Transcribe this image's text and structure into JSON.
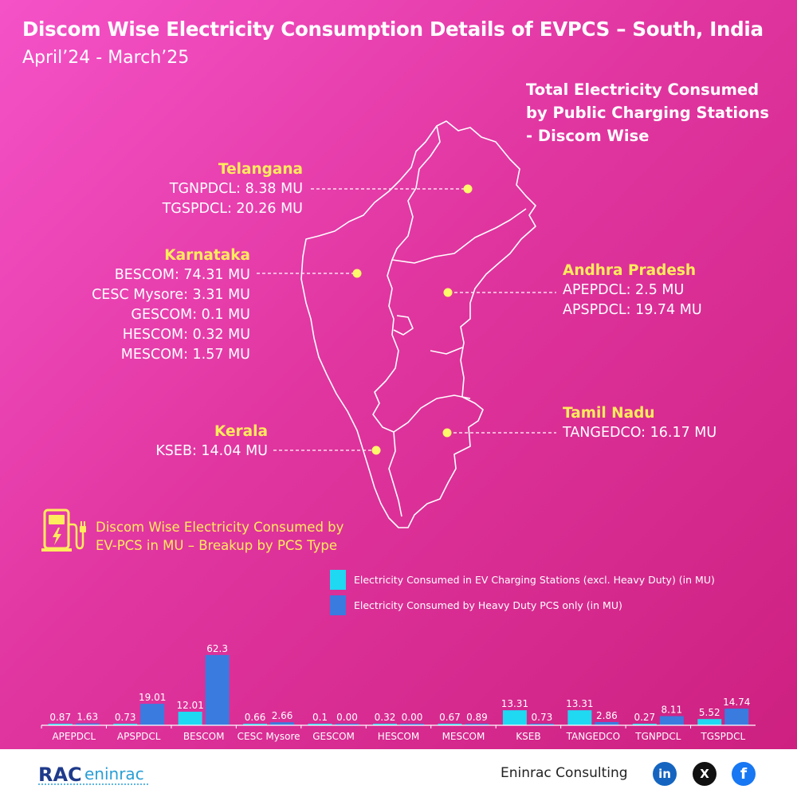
{
  "header": {
    "title": "Discom Wise Electricity Consumption Details of EVPCS – South, India",
    "subtitle": "April’24 - March’25"
  },
  "total_heading": {
    "line1": "Total Electricity Consumed",
    "line2": "by Public Charging Stations",
    "line3": "- Discom Wise"
  },
  "states": {
    "telangana": {
      "name": "Telangana",
      "lines": [
        "TGNPDCL: 8.38 MU",
        "TGSPDCL: 20.26 MU"
      ]
    },
    "karnataka": {
      "name": "Karnataka",
      "lines": [
        "BESCOM: 74.31 MU",
        "CESC Mysore: 3.31 MU",
        "GESCOM: 0.1 MU",
        "HESCOM: 0.32 MU",
        "MESCOM: 1.57 MU"
      ]
    },
    "kerala": {
      "name": "Kerala",
      "lines": [
        "KSEB: 14.04 MU"
      ]
    },
    "andhra": {
      "name": "Andhra Pradesh",
      "lines": [
        "APEPDCL: 2.5 MU",
        "APSPDCL: 19.74 MU"
      ]
    },
    "tamilnadu": {
      "name": "Tamil Nadu",
      "lines": [
        "TANGEDCO: 16.17 MU"
      ]
    }
  },
  "legend_intro": {
    "line1": "Discom Wise Electricity Consumed by",
    "line2": "EV-PCS in MU – Breakup by PCS Type"
  },
  "colors": {
    "excl_heavy": "#1fd8f2",
    "heavy": "#3a7be0",
    "accent_yellow": "#ffec5c"
  },
  "chart_data": {
    "type": "bar",
    "categories": [
      "APEPDCL",
      "APSPDCL",
      "BESCOM",
      "CESC Mysore",
      "GESCOM",
      "HESCOM",
      "MESCOM",
      "KSEB",
      "TANGEDCO",
      "TGNPDCL",
      "TGSPDCL"
    ],
    "series": [
      {
        "name": "Electricity Consumed in EV Charging Stations (excl. Heavy Duty) (in MU)",
        "values": [
          0.87,
          0.73,
          12.01,
          0.66,
          0.1,
          0.32,
          0.67,
          13.31,
          13.31,
          0.27,
          5.52
        ],
        "labels": [
          "0.87",
          "0.73",
          "12.01",
          "0.66",
          "0.1",
          "0.32",
          "0.67",
          "13.31",
          "13.31",
          "0.27",
          "5.52"
        ]
      },
      {
        "name": "Electricity Consumed by Heavy Duty PCS only (in MU)",
        "values": [
          1.63,
          19.01,
          62.3,
          2.66,
          0.0,
          0.0,
          0.89,
          0.73,
          2.86,
          8.11,
          14.74
        ],
        "labels": [
          "1.63",
          "19.01",
          "62.3",
          "2.66",
          "0.00",
          "0.00",
          "0.89",
          "0.73",
          "2.86",
          "8.11",
          "14.74"
        ]
      }
    ],
    "ylim": [
      0,
      65
    ],
    "grid": false,
    "legend_position": "top-right"
  },
  "footer": {
    "logo_text": "RAC eninrac",
    "company": "Eninrac Consulting",
    "linkedin": "in",
    "x": "X",
    "facebook": "f"
  }
}
